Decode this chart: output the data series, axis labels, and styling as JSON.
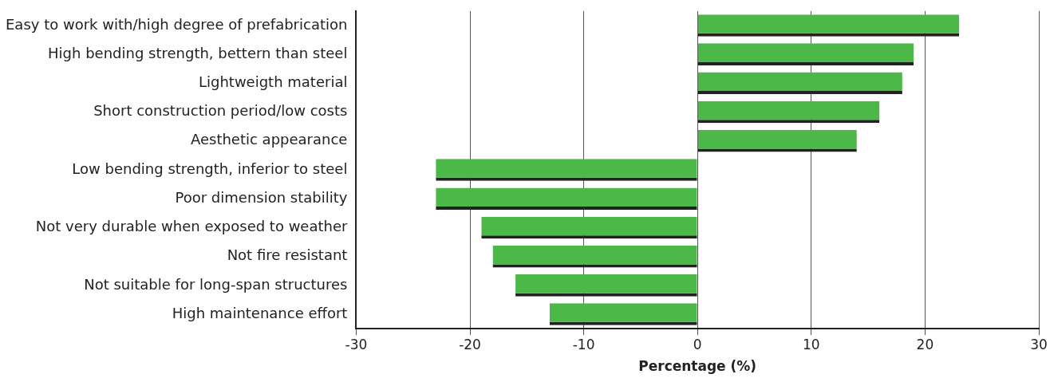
{
  "chart_data": {
    "type": "bar",
    "orientation": "horizontal",
    "xlabel": "Percentage (%)",
    "categories": [
      "Easy to work with/high degree of prefabrication",
      "High bending strength, bettern than steel",
      "Lightweigth material",
      "Short construction period/low costs",
      "Aesthetic appearance",
      "Low bending strength, inferior to steel",
      "Poor dimension stability",
      "Not very durable when exposed to weather",
      "Not fire resistant",
      "Not suitable for long-span structures",
      "High maintenance effort"
    ],
    "values": [
      23,
      19,
      18,
      16,
      14,
      -23,
      -23,
      -19,
      -18,
      -16,
      -13
    ],
    "color": "#4cb848",
    "xlim": [
      -30,
      30
    ],
    "xticks": [
      -30,
      -20,
      -10,
      0,
      10,
      20,
      30
    ],
    "grid": "x",
    "legend": false
  }
}
